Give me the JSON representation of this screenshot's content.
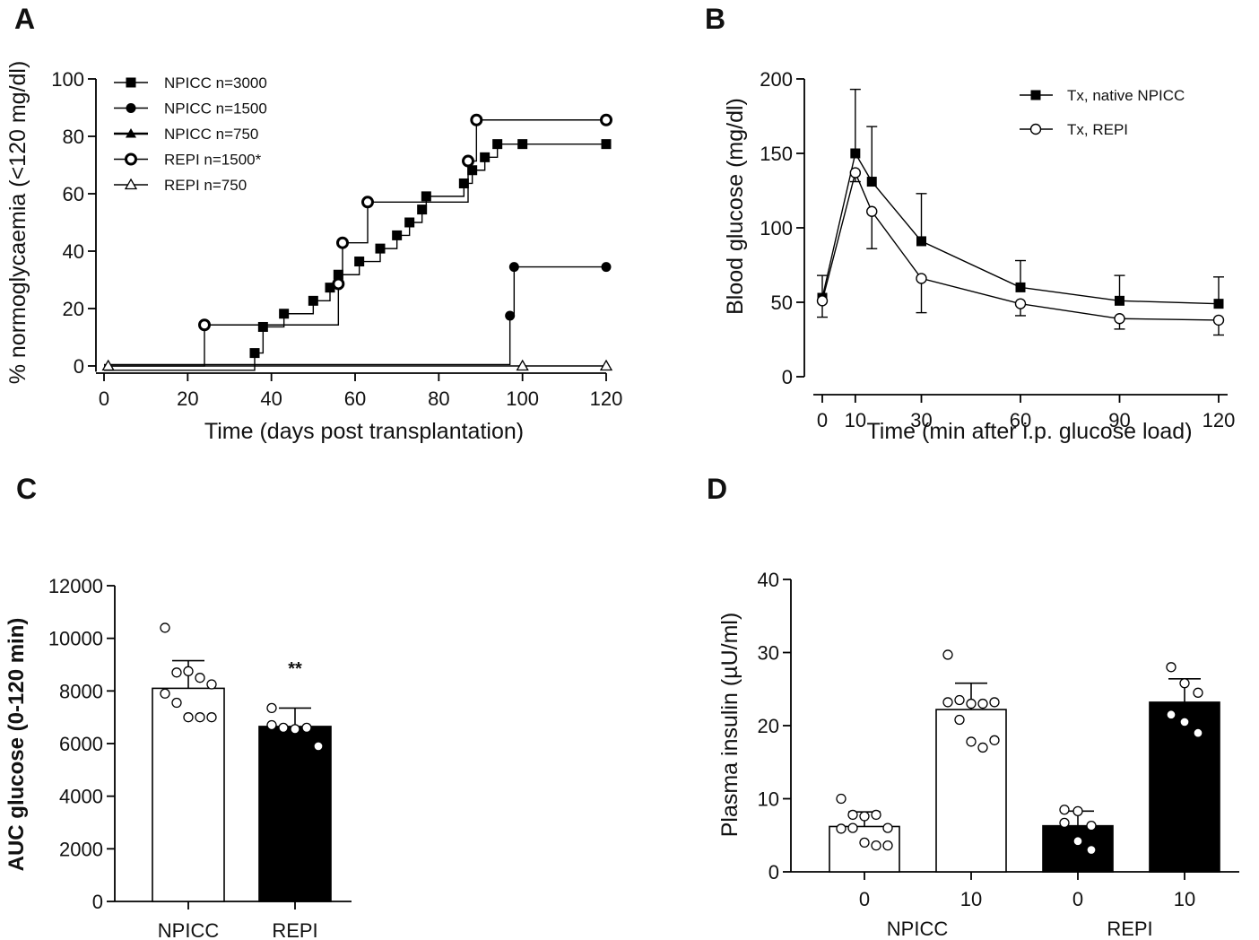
{
  "chart_data": [
    {
      "panel": "A",
      "type": "line",
      "step": true,
      "xlabel": "Time (days post transplantation)",
      "ylabel": "% normoglycaemia (<120 mg/dl)",
      "xlim": [
        0,
        120
      ],
      "ylim": [
        -2,
        100
      ],
      "xticks": [
        0,
        20,
        40,
        60,
        80,
        100,
        120
      ],
      "yticks": [
        0,
        20,
        40,
        60,
        80,
        100
      ],
      "legend_position": "top-left",
      "series": [
        {
          "name": "NPICC n=3000",
          "marker": "square-filled",
          "y0": -1.5,
          "points": [
            [
              36,
              4.5
            ],
            [
              38,
              13.6
            ],
            [
              43,
              18.2
            ],
            [
              50,
              22.7
            ],
            [
              54,
              27.3
            ],
            [
              56,
              31.8
            ],
            [
              61,
              36.4
            ],
            [
              66,
              40.9
            ],
            [
              70,
              45.5
            ],
            [
              73,
              50.0
            ],
            [
              76,
              54.5
            ],
            [
              77,
              59.1
            ],
            [
              86,
              63.6
            ],
            [
              88,
              68.2
            ],
            [
              91,
              72.7
            ],
            [
              94,
              77.3
            ],
            [
              100,
              77.3
            ],
            [
              120,
              77.3
            ]
          ]
        },
        {
          "name": "NPICC n=1500",
          "marker": "circle-filled",
          "y0": 0.5,
          "points": [
            [
              97,
              17.5
            ],
            [
              98,
              34.5
            ],
            [
              120,
              34.5
            ]
          ]
        },
        {
          "name": "NPICC n=750",
          "marker": "triangle-filled",
          "y0": 0,
          "points": []
        },
        {
          "name": "REPI n=1500*",
          "marker": "circle-open-thick",
          "y0": 0,
          "points": [
            [
              24,
              14.3
            ],
            [
              56,
              28.6
            ],
            [
              57,
              42.9
            ],
            [
              63,
              57.1
            ],
            [
              87,
              71.4
            ],
            [
              89,
              85.7
            ],
            [
              120,
              85.7
            ]
          ]
        },
        {
          "name": "REPI n=750",
          "marker": "triangle-open",
          "y0": 0,
          "points": [
            [
              1,
              0
            ],
            [
              100,
              0
            ],
            [
              120,
              0
            ]
          ]
        }
      ]
    },
    {
      "panel": "B",
      "type": "line",
      "xlabel": "Time (min after i.p. glucose load)",
      "ylabel": "Blood glucose (mg/dl)",
      "xlim": [
        0,
        120
      ],
      "ylim": [
        0,
        200
      ],
      "xticks": [
        0,
        10,
        30,
        60,
        90,
        120
      ],
      "yticks": [
        0,
        50,
        100,
        150,
        200
      ],
      "legend_position": "top-right",
      "series": [
        {
          "name": "Tx, native NPICC",
          "marker": "square-filled",
          "x": [
            0,
            10,
            15,
            30,
            60,
            90,
            120
          ],
          "y": [
            53,
            150,
            131,
            91,
            60,
            51,
            49
          ],
          "err": [
            15,
            43,
            37,
            32,
            18,
            17,
            18
          ]
        },
        {
          "name": "Tx, REPI",
          "marker": "circle-open",
          "x": [
            0,
            10,
            15,
            30,
            60,
            90,
            120
          ],
          "y": [
            51,
            137,
            111,
            66,
            49,
            39,
            38
          ],
          "err": [
            11,
            6,
            25,
            23,
            8,
            7,
            10
          ]
        }
      ]
    },
    {
      "panel": "C",
      "type": "bar",
      "ylabel": "AUC glucose (0-120 min)",
      "ylim": [
        0,
        12000
      ],
      "yticks": [
        0,
        2000,
        4000,
        6000,
        8000,
        10000,
        12000
      ],
      "categories": [
        "NPICC",
        "REPI"
      ],
      "values": [
        8100,
        6650
      ],
      "sd": [
        1050,
        700
      ],
      "fills": [
        "#ffffff",
        "#000000"
      ],
      "annotations": [
        {
          "category": "REPI",
          "text": "**"
        }
      ],
      "points": [
        [
          10400,
          8700,
          8750,
          8500,
          8250,
          7900,
          7550,
          7000,
          7000,
          7000
        ],
        [
          7350,
          6600,
          6550,
          6600,
          5900,
          6700
        ]
      ]
    },
    {
      "panel": "D",
      "type": "bar",
      "ylabel": "Plasma insulin (µU/ml)",
      "ylim": [
        0,
        40
      ],
      "yticks": [
        0,
        10,
        20,
        30,
        40
      ],
      "categories": [
        "0",
        "10",
        "0",
        "10"
      ],
      "groups": [
        "NPICC",
        "REPI"
      ],
      "values": [
        6.2,
        22.2,
        6.3,
        23.2
      ],
      "sd": [
        2.0,
        3.6,
        2.0,
        3.2
      ],
      "fills": [
        "#ffffff",
        "#ffffff",
        "#000000",
        "#000000"
      ],
      "points": [
        [
          10.0,
          7.8,
          7.6,
          7.8,
          6.0,
          5.9,
          6.0,
          4.0,
          3.6,
          3.6
        ],
        [
          29.7,
          23.5,
          23.0,
          23.0,
          23.2,
          23.2,
          20.8,
          17.8,
          17.0,
          18.0
        ],
        [
          8.5,
          8.3,
          6.3,
          6.7,
          4.2,
          3.0
        ],
        [
          28.0,
          25.8,
          24.5,
          21.5,
          20.5,
          19.0
        ]
      ]
    }
  ]
}
